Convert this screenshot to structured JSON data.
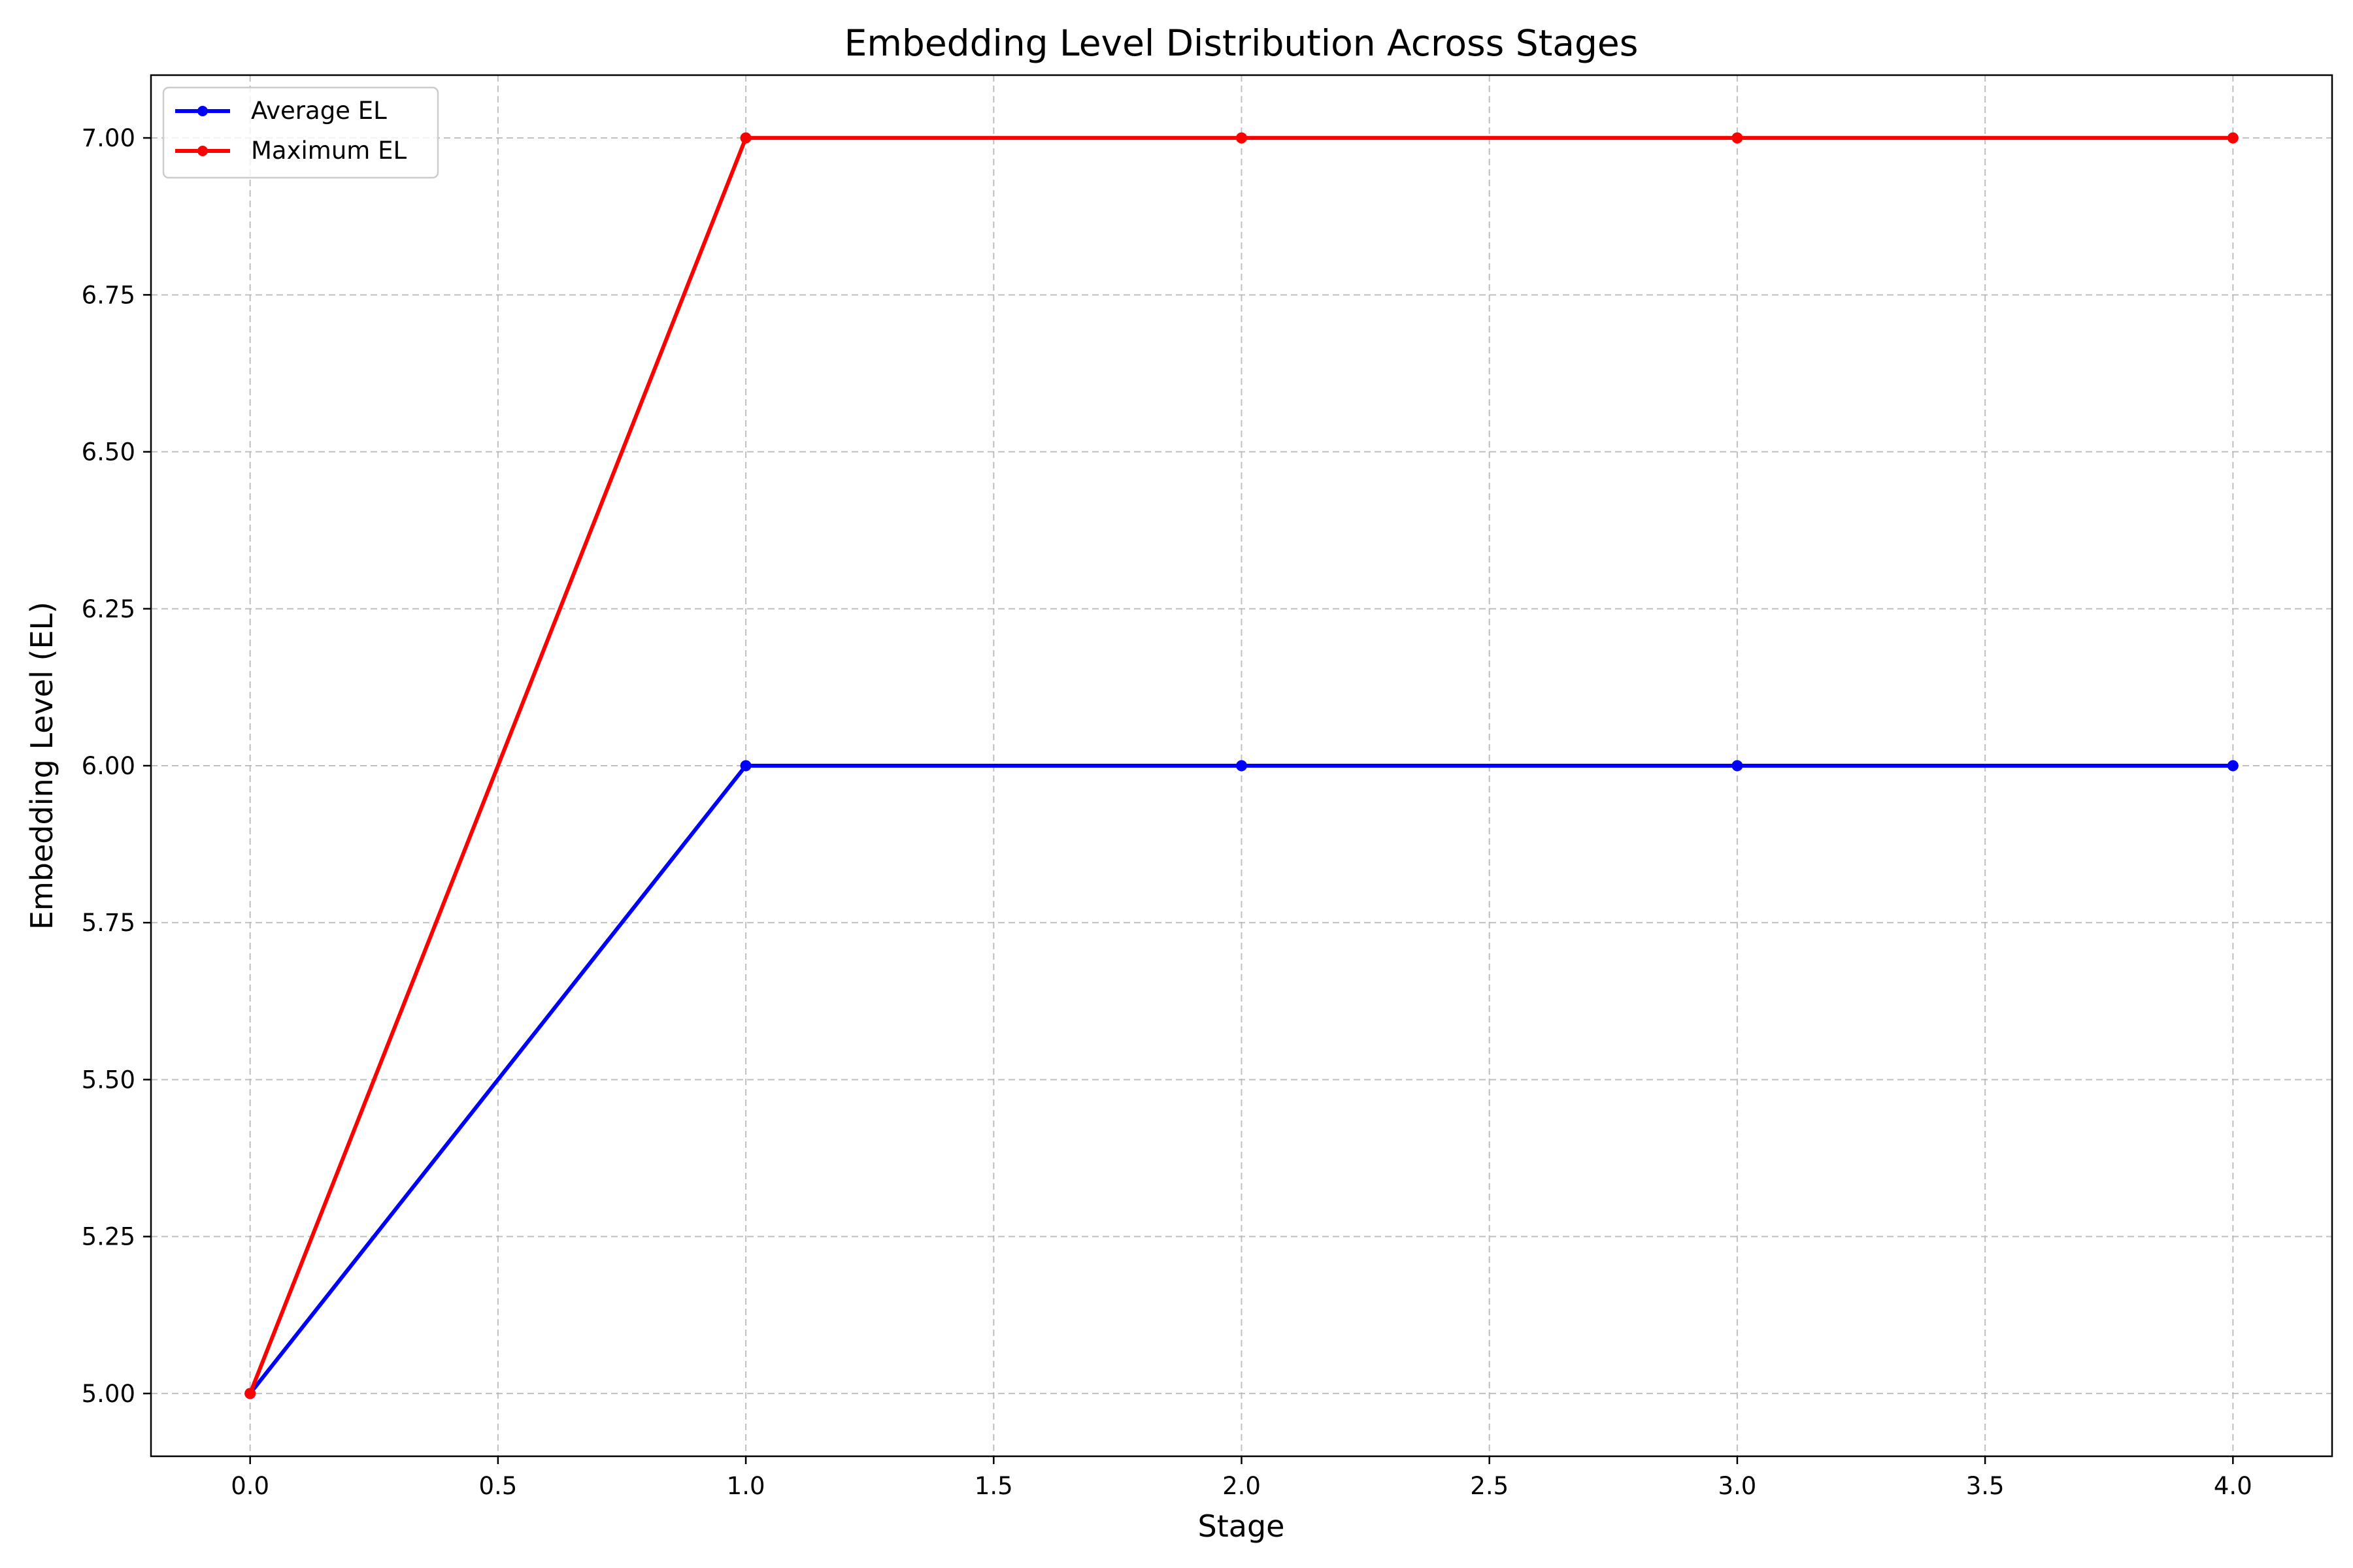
{
  "chart_data": {
    "type": "line",
    "title": "Embedding Level Distribution Across Stages",
    "xlabel": "Stage",
    "ylabel": "Embedding Level (EL)",
    "xlim": [
      -0.2,
      4.2
    ],
    "ylim": [
      4.9,
      7.1
    ],
    "x_ticks": [
      "0.0",
      "0.5",
      "1.0",
      "1.5",
      "2.0",
      "2.5",
      "3.0",
      "3.5",
      "4.0"
    ],
    "y_ticks": [
      "5.00",
      "5.25",
      "5.50",
      "5.75",
      "6.00",
      "6.25",
      "6.50",
      "6.75",
      "7.00"
    ],
    "grid": true,
    "legend_position": "top-left",
    "x": [
      0,
      1,
      2,
      3,
      4
    ],
    "series": [
      {
        "name": "Average EL",
        "color": "#0000ff",
        "values": [
          5.0,
          6.0,
          6.0,
          6.0,
          6.0
        ]
      },
      {
        "name": "Maximum EL",
        "color": "#ff0000",
        "values": [
          5.0,
          7.0,
          7.0,
          7.0,
          7.0
        ]
      }
    ]
  }
}
